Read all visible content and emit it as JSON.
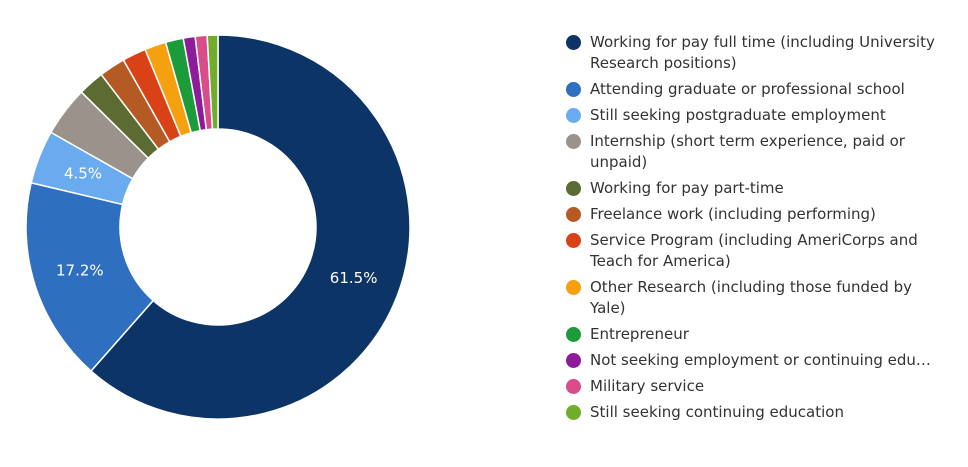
{
  "chart_data": {
    "type": "donut",
    "categories": [
      "Working for pay full time (including University Research positions)",
      "Attending graduate or professional school",
      "Still seeking postgraduate employment",
      "Internship (short term experience, paid or unpaid)",
      "Working for pay part-time",
      "Freelance work (including performing)",
      "Service Program (including AmeriCorps and Teach for America)",
      "Other Research (including those funded by Yale)",
      "Entrepreneur",
      "Not seeking employment or continuing edu…",
      "Military service",
      "Still seeking continuing education"
    ],
    "values": [
      61.5,
      17.2,
      4.5,
      4.2,
      2.2,
      2.2,
      2.0,
      1.8,
      1.5,
      1.0,
      1.0,
      0.9
    ],
    "value_labels": [
      "61.5%",
      "17.2%",
      "4.5%",
      null,
      null,
      null,
      null,
      null,
      null,
      null,
      null,
      null
    ],
    "colors": [
      "#0c3466",
      "#2f6fc0",
      "#6aabf0",
      "#9a928b",
      "#5b6b31",
      "#b65a24",
      "#d94116",
      "#f5a00f",
      "#1b9b3a",
      "#8e1b9a",
      "#d84c8a",
      "#6fad2a"
    ],
    "legend": "right"
  }
}
